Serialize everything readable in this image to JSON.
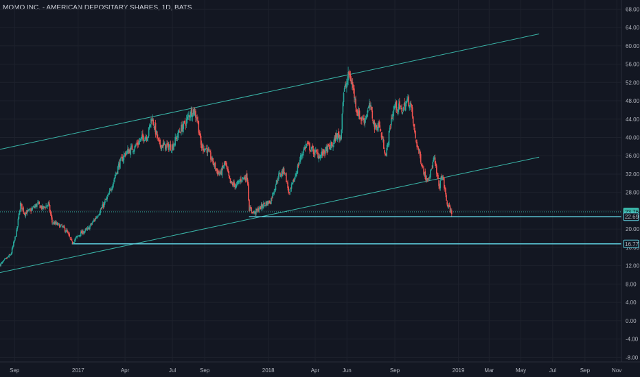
{
  "chart_data": {
    "type": "candlestick",
    "title": "MOMO INC. - AMERICAN DEPOSITARY SHARES, 1D, BATS",
    "y_axis_ticks": [
      "68.00",
      "64.00",
      "60.00",
      "56.00",
      "52.00",
      "48.00",
      "44.00",
      "40.00",
      "36.00",
      "32.00",
      "28.00",
      "24.00",
      "20.00",
      "16.00",
      "12.00",
      "8.00",
      "4.00",
      "0.00",
      "-4.00",
      "-8.00"
    ],
    "y_tick_values": [
      68,
      64,
      60,
      56,
      52,
      48,
      44,
      40,
      36,
      32,
      28,
      24,
      20,
      16,
      12,
      8,
      4,
      0,
      -4,
      -8
    ],
    "x_axis_ticks": [
      "Sep",
      "2017",
      "Apr",
      "Jul",
      "Sep",
      "2018",
      "Apr",
      "Jun",
      "Sep",
      "2019",
      "Mar",
      "May",
      "Jul",
      "Sep",
      "Nov"
    ],
    "x_tick_dates": [
      "2016-09-01",
      "2017-01-01",
      "2017-04-01",
      "2017-07-01",
      "2017-09-01",
      "2018-01-01",
      "2018-04-01",
      "2018-06-01",
      "2018-09-01",
      "2019-01-01",
      "2019-03-01",
      "2019-05-01",
      "2019-07-01",
      "2019-09-01",
      "2019-11-01"
    ],
    "ylim": [
      -9,
      70
    ],
    "xlim": [
      "2016-08-04",
      "2019-11-10"
    ],
    "grid": true,
    "price_labels": [
      {
        "text": "23.76",
        "value": 23.76,
        "style": "filled"
      },
      {
        "text": "22.69",
        "value": 22.69,
        "style": "outline"
      },
      {
        "text": "16.77",
        "value": 16.77,
        "style": "outline"
      }
    ],
    "horizontal_lines": [
      {
        "value": 22.69,
        "from": "2017-11-25",
        "to": "2019-11-10"
      },
      {
        "value": 16.77,
        "from": "2016-12-20",
        "to": "2019-11-10"
      },
      {
        "value": 23.76,
        "from": "2016-08-04",
        "to": "2019-11-10",
        "dotted": true
      }
    ],
    "trend_lines": [
      {
        "start_date": "2016-08-04",
        "start_value": 37.4,
        "end_date": "2019-06-05",
        "end_value": 62.6
      },
      {
        "start_date": "2016-08-04",
        "start_value": 10.5,
        "end_date": "2019-06-05",
        "end_value": 35.7
      }
    ],
    "price_path": [
      [
        "2016-08-04",
        12.2
      ],
      [
        "2016-08-25",
        14.5
      ],
      [
        "2016-09-05",
        19.5
      ],
      [
        "2016-09-12",
        25.5
      ],
      [
        "2016-09-20",
        23.5
      ],
      [
        "2016-10-01",
        24.0
      ],
      [
        "2016-10-15",
        25.5
      ],
      [
        "2016-10-25",
        24.5
      ],
      [
        "2016-11-05",
        25.5
      ],
      [
        "2016-11-12",
        21.5
      ],
      [
        "2016-11-22",
        21.0
      ],
      [
        "2016-12-01",
        20.5
      ],
      [
        "2016-12-10",
        19.5
      ],
      [
        "2016-12-20",
        17.0
      ],
      [
        "2017-01-05",
        19.0
      ],
      [
        "2017-01-20",
        20.0
      ],
      [
        "2017-02-01",
        22.0
      ],
      [
        "2017-02-15",
        24.5
      ],
      [
        "2017-03-01",
        27.5
      ],
      [
        "2017-03-20",
        34.0
      ],
      [
        "2017-04-01",
        36.5
      ],
      [
        "2017-04-20",
        38.0
      ],
      [
        "2017-05-05",
        40.0
      ],
      [
        "2017-05-15",
        40.5
      ],
      [
        "2017-05-22",
        44.5
      ],
      [
        "2017-05-26",
        43.0
      ],
      [
        "2017-06-05",
        38.5
      ],
      [
        "2017-06-20",
        38.0
      ],
      [
        "2017-07-01",
        38.0
      ],
      [
        "2017-07-15",
        41.5
      ],
      [
        "2017-07-25",
        43.0
      ],
      [
        "2017-08-05",
        45.5
      ],
      [
        "2017-08-10",
        46.0
      ],
      [
        "2017-08-18",
        44.0
      ],
      [
        "2017-08-25",
        38.0
      ],
      [
        "2017-09-05",
        37.5
      ],
      [
        "2017-09-15",
        35.0
      ],
      [
        "2017-09-25",
        32.5
      ],
      [
        "2017-10-01",
        32.0
      ],
      [
        "2017-10-10",
        34.5
      ],
      [
        "2017-10-20",
        30.0
      ],
      [
        "2017-11-01",
        29.5
      ],
      [
        "2017-11-10",
        31.0
      ],
      [
        "2017-11-22",
        31.5
      ],
      [
        "2017-11-25",
        24.5
      ],
      [
        "2017-12-05",
        23.5
      ],
      [
        "2017-12-15",
        24.5
      ],
      [
        "2017-12-25",
        25.5
      ],
      [
        "2018-01-05",
        26.0
      ],
      [
        "2018-01-20",
        31.5
      ],
      [
        "2018-02-01",
        33.0
      ],
      [
        "2018-02-10",
        27.5
      ],
      [
        "2018-02-20",
        31.0
      ],
      [
        "2018-03-05",
        36.0
      ],
      [
        "2018-03-15",
        38.5
      ],
      [
        "2018-03-28",
        37.0
      ],
      [
        "2018-04-10",
        36.0
      ],
      [
        "2018-04-20",
        37.0
      ],
      [
        "2018-05-05",
        38.5
      ],
      [
        "2018-05-12",
        40.5
      ],
      [
        "2018-05-20",
        40.0
      ],
      [
        "2018-05-25",
        49.5
      ],
      [
        "2018-06-01",
        52.0
      ],
      [
        "2018-06-05",
        54.0
      ],
      [
        "2018-06-12",
        51.0
      ],
      [
        "2018-06-20",
        46.0
      ],
      [
        "2018-06-28",
        44.0
      ],
      [
        "2018-07-05",
        44.0
      ],
      [
        "2018-07-15",
        47.0
      ],
      [
        "2018-07-25",
        42.0
      ],
      [
        "2018-08-01",
        43.0
      ],
      [
        "2018-08-10",
        38.5
      ],
      [
        "2018-08-15",
        36.0
      ],
      [
        "2018-08-25",
        44.0
      ],
      [
        "2018-09-01",
        47.0
      ],
      [
        "2018-09-15",
        46.0
      ],
      [
        "2018-09-25",
        48.0
      ],
      [
        "2018-10-01",
        47.5
      ],
      [
        "2018-10-10",
        40.0
      ],
      [
        "2018-10-20",
        35.5
      ],
      [
        "2018-10-30",
        31.0
      ],
      [
        "2018-11-08",
        32.0
      ],
      [
        "2018-11-15",
        35.5
      ],
      [
        "2018-11-25",
        29.0
      ],
      [
        "2018-12-01",
        32.0
      ],
      [
        "2018-12-10",
        25.5
      ],
      [
        "2018-12-20",
        23.3
      ]
    ]
  }
}
